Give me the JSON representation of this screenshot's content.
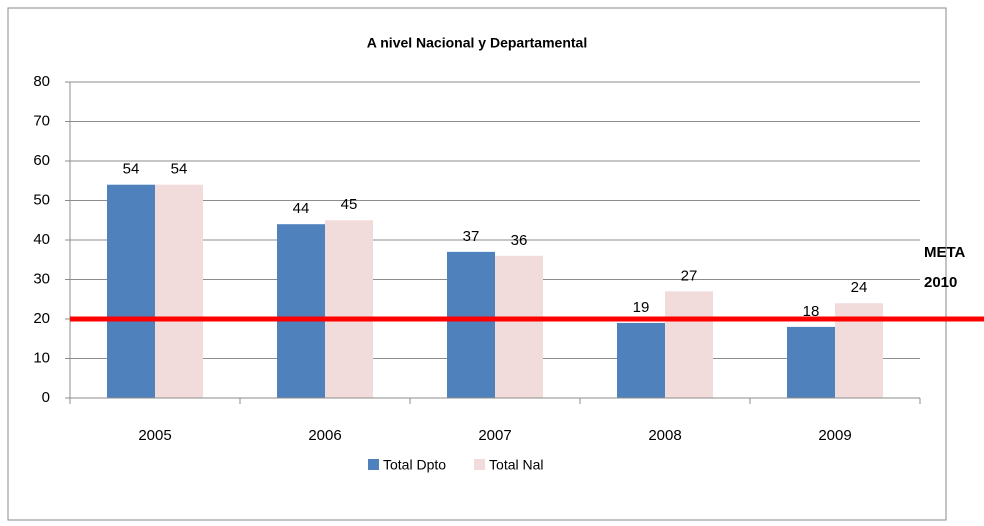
{
  "chart_data": {
    "type": "bar",
    "title": "A nivel Nacional y Departamental",
    "categories": [
      "2005",
      "2006",
      "2007",
      "2008",
      "2009"
    ],
    "series": [
      {
        "name": "Total Dpto",
        "color": "#4f81bd",
        "values": [
          54,
          44,
          37,
          19,
          18
        ]
      },
      {
        "name": "Total Nal",
        "color": "#f2dcdb",
        "values": [
          54,
          45,
          36,
          27,
          24
        ]
      }
    ],
    "ylim": [
      0,
      80
    ],
    "yticks": [
      0,
      10,
      20,
      30,
      40,
      50,
      60,
      70,
      80
    ],
    "grid": true,
    "reference_line": {
      "value": 20,
      "color": "#ff0000"
    },
    "annotations": [
      "META",
      "2010"
    ],
    "legend": "bottom"
  }
}
